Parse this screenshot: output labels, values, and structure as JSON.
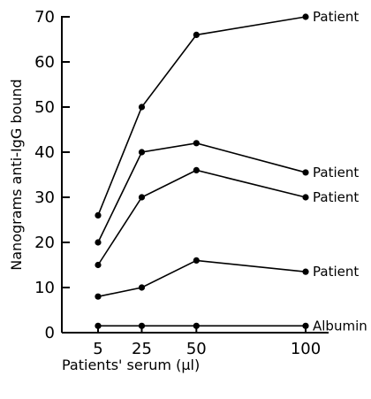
{
  "chart_data": {
    "type": "line",
    "title": "",
    "xlabel": "Patients' serum (µl)",
    "ylabel": "Nanograms anti-IgG bound",
    "x": [
      5,
      25,
      50,
      100
    ],
    "xlim": [
      0,
      100
    ],
    "ylim": [
      0,
      70
    ],
    "xticks": [
      5,
      25,
      50,
      100
    ],
    "yticks": [
      0,
      10,
      20,
      30,
      40,
      50,
      60,
      70
    ],
    "grid": false,
    "series": [
      {
        "name": "Patient",
        "values": [
          26,
          50,
          66,
          70
        ]
      },
      {
        "name": "Patient",
        "values": [
          20,
          40,
          42,
          35.5
        ]
      },
      {
        "name": "Patient",
        "values": [
          15,
          30,
          36,
          30
        ]
      },
      {
        "name": "Patient",
        "values": [
          8,
          10,
          16,
          13.5
        ]
      },
      {
        "name": "Albumin",
        "values": [
          1.5,
          1.5,
          1.5,
          1.5
        ]
      }
    ]
  }
}
